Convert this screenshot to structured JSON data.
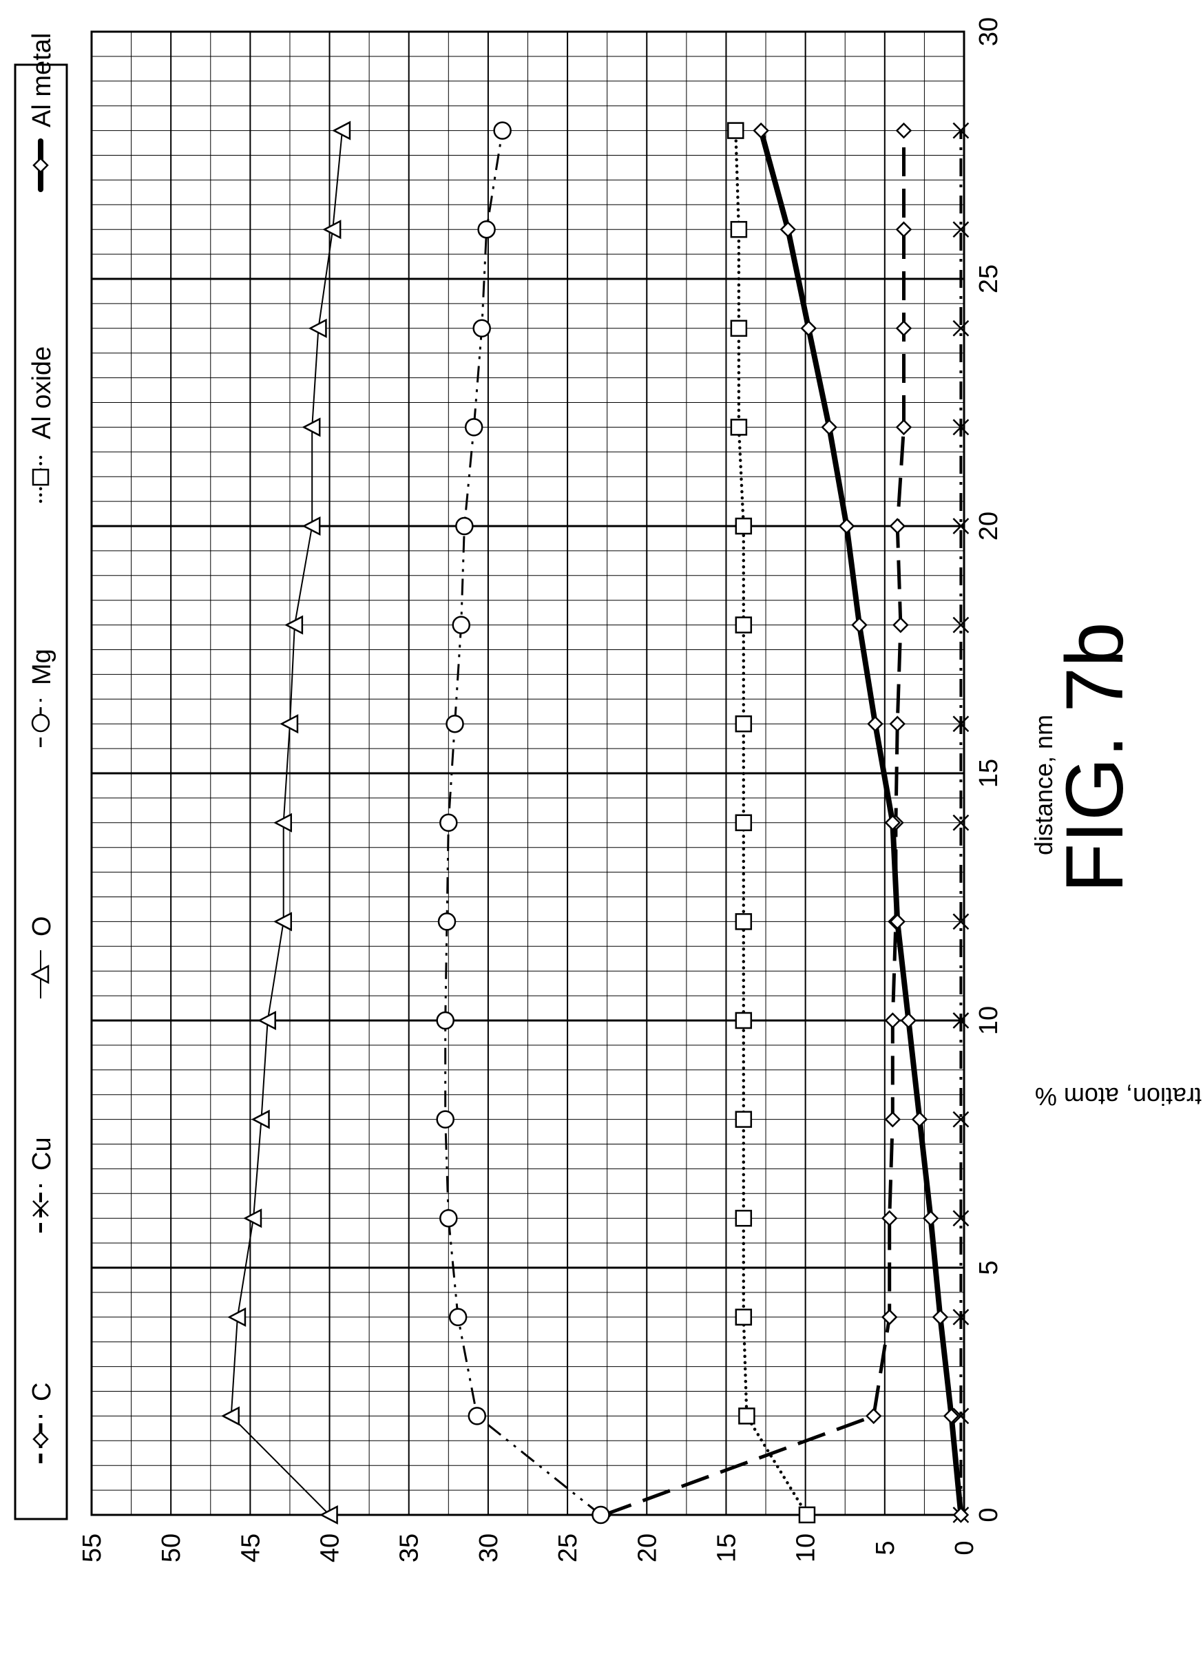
{
  "figure_label": "FIG. 7b",
  "chart_data": {
    "type": "line",
    "xlabel": "distance, nm",
    "ylabel": "concentration, atom %",
    "xlim": [
      0,
      30
    ],
    "ylim": [
      0,
      55
    ],
    "x_ticks": [
      "0",
      "5",
      "10",
      "15",
      "20",
      "25",
      "30"
    ],
    "y_ticks": [
      "0",
      "5",
      "10",
      "15",
      "20",
      "25",
      "30",
      "35",
      "40",
      "45",
      "50",
      "55"
    ],
    "grid": true,
    "legend_position": "top",
    "series": [
      {
        "name": "C",
        "marker": "diamond",
        "style": "long-dash",
        "x": [
          0,
          2,
          4,
          6,
          8,
          10,
          12,
          14,
          16,
          18,
          20,
          22,
          24,
          26,
          28
        ],
        "y": [
          22.7,
          5.7,
          4.7,
          4.7,
          4.5,
          4.5,
          4.3,
          4.3,
          4.2,
          4.0,
          4.2,
          3.8,
          3.8,
          3.8,
          3.8
        ]
      },
      {
        "name": "Cu",
        "marker": "x",
        "style": "dash-dot",
        "x": [
          0,
          2,
          4,
          6,
          8,
          10,
          12,
          14,
          16,
          18,
          20,
          22,
          24,
          26,
          28
        ],
        "y": [
          0.2,
          0.2,
          0.2,
          0.2,
          0.2,
          0.2,
          0.2,
          0.2,
          0.2,
          0.2,
          0.2,
          0.2,
          0.2,
          0.2,
          0.2
        ]
      },
      {
        "name": "O",
        "marker": "triangle",
        "style": "solid-thin",
        "x": [
          0,
          2,
          4,
          6,
          8,
          10,
          12,
          14,
          16,
          18,
          20,
          22,
          24,
          26,
          28
        ],
        "y": [
          40.0,
          46.2,
          45.8,
          44.8,
          44.3,
          43.9,
          42.9,
          42.9,
          42.5,
          42.2,
          41.1,
          41.1,
          40.7,
          39.8,
          39.2
        ]
      },
      {
        "name": "Mg",
        "marker": "circle",
        "style": "dash-dot-dot",
        "x": [
          0,
          2,
          4,
          6,
          8,
          10,
          12,
          14,
          16,
          18,
          20,
          22,
          24,
          26,
          28
        ],
        "y": [
          22.9,
          30.7,
          31.9,
          32.5,
          32.7,
          32.7,
          32.6,
          32.5,
          32.1,
          31.7,
          31.5,
          30.9,
          30.4,
          30.1,
          29.1
        ]
      },
      {
        "name": "Al oxide",
        "marker": "square",
        "style": "dotted",
        "x": [
          0,
          2,
          4,
          6,
          8,
          10,
          12,
          14,
          16,
          18,
          20,
          22,
          24,
          26,
          28
        ],
        "y": [
          9.9,
          13.7,
          13.9,
          13.9,
          13.9,
          13.9,
          13.9,
          13.9,
          13.9,
          13.9,
          13.9,
          14.2,
          14.2,
          14.2,
          14.4
        ]
      },
      {
        "name": "Al metal",
        "marker": "diamond",
        "style": "solid-thick",
        "x": [
          0,
          2,
          4,
          6,
          8,
          10,
          12,
          14,
          16,
          18,
          20,
          22,
          24,
          26,
          28
        ],
        "y": [
          0.2,
          0.8,
          1.5,
          2.1,
          2.8,
          3.5,
          4.2,
          4.5,
          5.6,
          6.6,
          7.4,
          8.5,
          9.8,
          11.1,
          12.8
        ]
      }
    ]
  }
}
